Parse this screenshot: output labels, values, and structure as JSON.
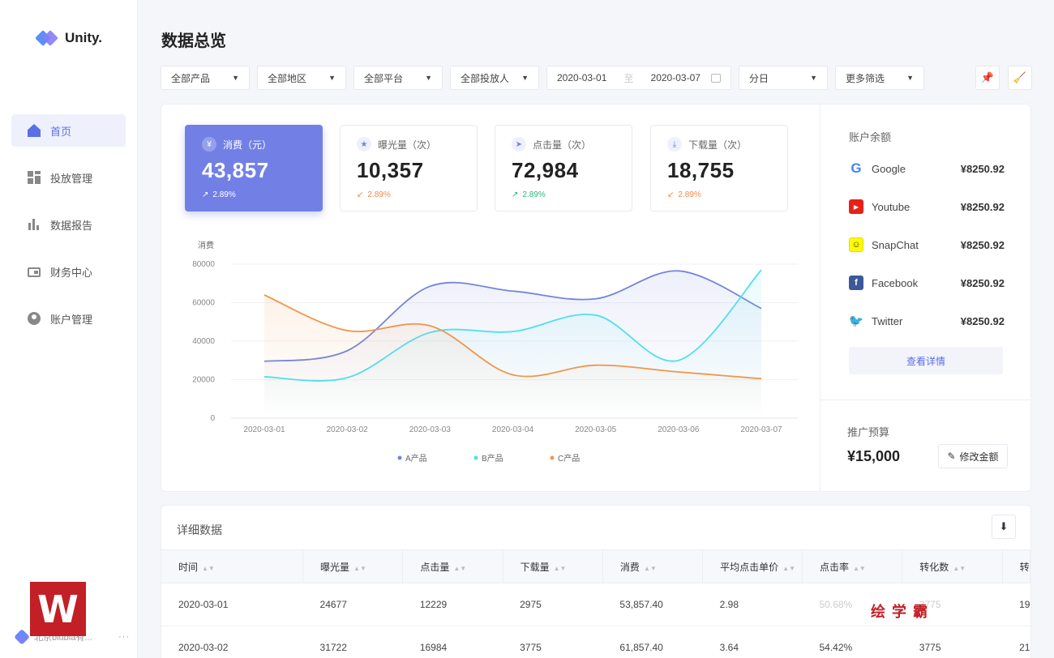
{
  "app": {
    "logo_text": "Unity.",
    "page_title": "数据总览"
  },
  "sidebar": {
    "items": [
      {
        "label": "首页",
        "icon": "home-icon",
        "active": true
      },
      {
        "label": "投放管理",
        "icon": "grid-icon"
      },
      {
        "label": "数据报告",
        "icon": "bar-chart-icon"
      },
      {
        "label": "财务中心",
        "icon": "wallet-icon"
      },
      {
        "label": "账户管理",
        "icon": "user-icon"
      }
    ],
    "company": "北京blubla有...",
    "more": "···"
  },
  "filters": {
    "product": "全部产品",
    "region": "全部地区",
    "platform": "全部平台",
    "advertiser": "全部投放人",
    "date_start": "2020-03-01",
    "date_sep": "至",
    "date_end": "2020-03-07",
    "granularity": "分日",
    "more": "更多筛选"
  },
  "kpis": [
    {
      "label": "消费（元）",
      "value": "43,857",
      "trend": "2.89%",
      "direction": "up",
      "icon": "yen-icon",
      "active": true
    },
    {
      "label": "曝光量（次）",
      "value": "10,357",
      "trend": "2.89%",
      "direction": "down",
      "icon": "star-icon"
    },
    {
      "label": "点击量（次）",
      "value": "72,984",
      "trend": "2.89%",
      "direction": "up",
      "icon": "cursor-icon"
    },
    {
      "label": "下载量（次）",
      "value": "18,755",
      "trend": "2.89%",
      "direction": "down",
      "icon": "download-icon"
    }
  ],
  "chart_data": {
    "type": "line",
    "ylabel": "消费",
    "ylim": [
      0,
      80000
    ],
    "yticks": [
      0,
      20000,
      40000,
      60000,
      80000
    ],
    "categories": [
      "2020-03-01",
      "2020-03-02",
      "2020-03-03",
      "2020-03-04",
      "2020-03-05",
      "2020-03-06",
      "2020-03-07"
    ],
    "series": [
      {
        "name": "A产品",
        "color": "#7585d8",
        "values": [
          29500,
          35000,
          68500,
          66000,
          62000,
          76500,
          57000
        ]
      },
      {
        "name": "B产品",
        "color": "#4fe0ee",
        "values": [
          21500,
          21000,
          44500,
          45000,
          53500,
          30000,
          77000
        ]
      },
      {
        "name": "C产品",
        "color": "#f0974a",
        "values": [
          64000,
          45500,
          48000,
          22500,
          27500,
          24000,
          20500
        ]
      }
    ],
    "legend_position": "bottom"
  },
  "balance": {
    "title": "账户余额",
    "items": [
      {
        "name": "Google",
        "amount": "¥8250.92",
        "icon": "google-icon",
        "color": "#ffffff"
      },
      {
        "name": "Youtube",
        "amount": "¥8250.92",
        "icon": "youtube-icon",
        "color": "#e62117"
      },
      {
        "name": "SnapChat",
        "amount": "¥8250.92",
        "icon": "snapchat-icon",
        "color": "#fffc00"
      },
      {
        "name": "Facebook",
        "amount": "¥8250.92",
        "icon": "facebook-icon",
        "color": "#3b5998"
      },
      {
        "name": "Twitter",
        "amount": "¥8250.92",
        "icon": "twitter-icon",
        "color": "#1da1f2"
      }
    ],
    "detail_button": "查看详情"
  },
  "budget": {
    "title": "推广预算",
    "value": "¥15,000",
    "edit_button": "修改金额"
  },
  "detail": {
    "title": "详细数据",
    "columns": [
      "时间",
      "曝光量",
      "点击量",
      "下载量",
      "消费",
      "平均点击单价",
      "点击率",
      "转化数",
      "转"
    ],
    "rows": [
      [
        "2020-03-01",
        "24677",
        "12229",
        "2975",
        "53,857.40",
        "2.98",
        "50.68%",
        "3775",
        "19"
      ],
      [
        "2020-03-02",
        "31722",
        "16984",
        "3775",
        "61,857.40",
        "3.64",
        "54.42%",
        "3775",
        "21"
      ]
    ]
  },
  "watermark": {
    "logo": "W",
    "text": "绘学霸"
  }
}
